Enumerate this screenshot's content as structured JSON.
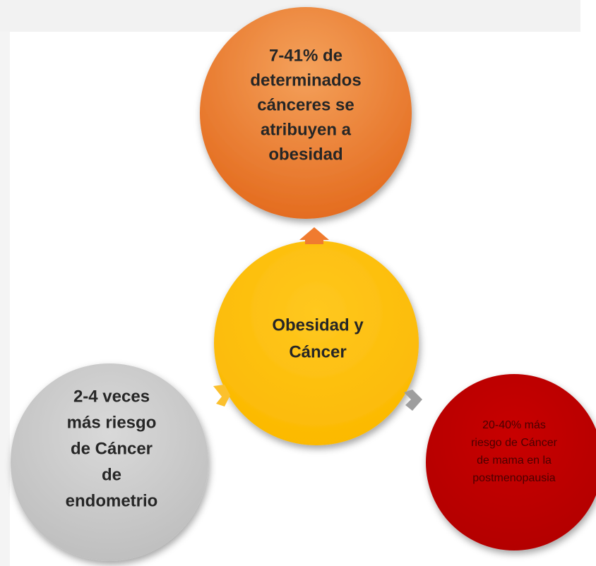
{
  "nodes": [
    {
      "lines": [
        "7-41% de",
        "determinados",
        "cánceres se",
        "atribuyen a",
        "obesidad"
      ]
    },
    {
      "lines": [
        "Obesidad y",
        "Cáncer"
      ]
    },
    {
      "lines": [
        "2-4 veces",
        "más riesgo",
        "de Cáncer",
        "de",
        "endometrio"
      ]
    },
    {
      "lines": [
        "20-40% más",
        "riesgo de Cáncer",
        "de mama en la",
        "postmenopausia"
      ]
    }
  ]
}
